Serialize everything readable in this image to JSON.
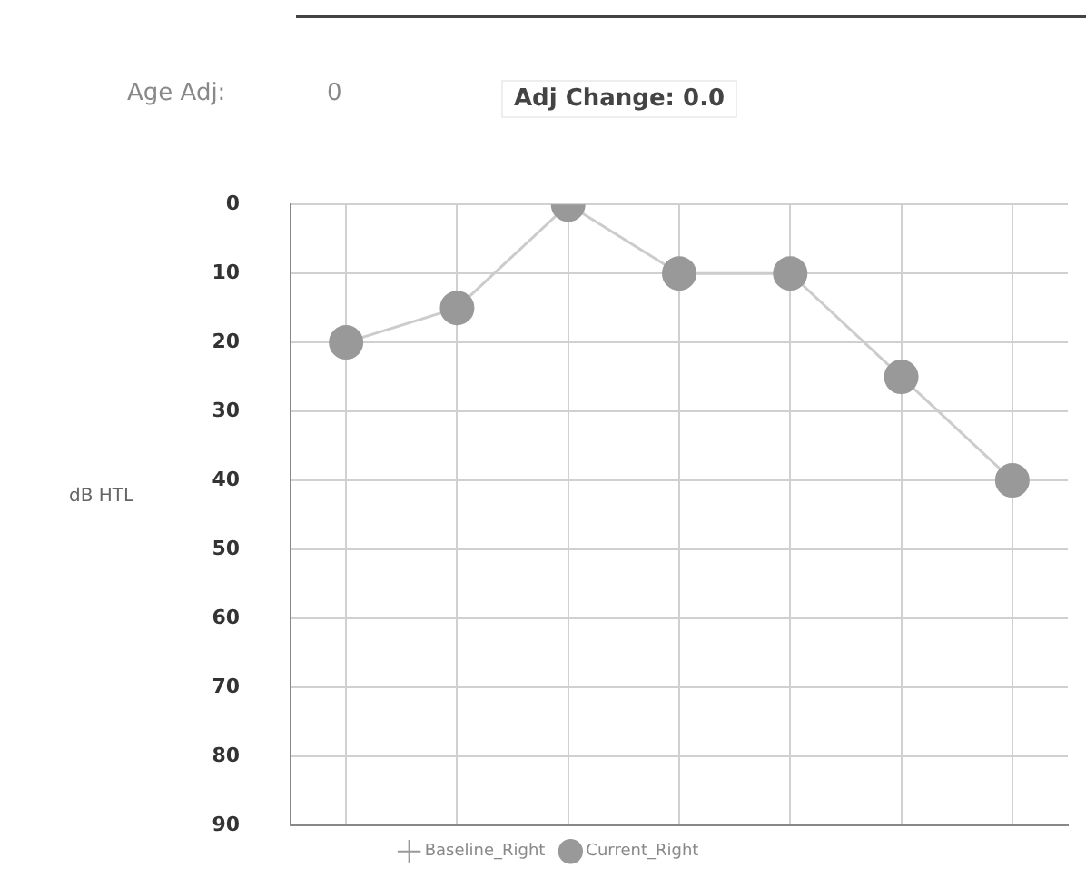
{
  "chart_data": {
    "type": "line",
    "ylabel": "dB HTL",
    "annotations": [
      "Age Adj:",
      "0",
      "Adj Change: 0.0"
    ],
    "categories": [
      null,
      null,
      null,
      null,
      null,
      null,
      null
    ],
    "series": [
      {
        "name": "Baseline_Right",
        "color": "#999999",
        "marker": "cross",
        "values": [
          null,
          null,
          null,
          null,
          null,
          null,
          null
        ]
      },
      {
        "name": "Current_Right",
        "color": "#999999",
        "marker": "circle",
        "values": [
          20,
          15,
          0,
          10,
          10,
          25,
          40
        ]
      }
    ],
    "ylim": [
      90,
      0
    ],
    "yticks": [
      0,
      10,
      20,
      30,
      40,
      50,
      60,
      70,
      80,
      90
    ],
    "grid": true,
    "legend": "bottom"
  }
}
